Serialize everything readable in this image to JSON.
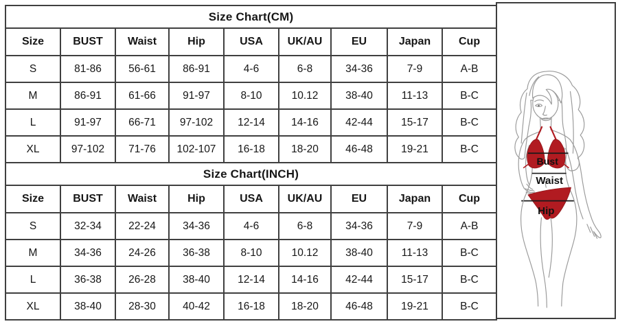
{
  "tables": [
    {
      "title": "Size Chart(CM)",
      "headers": [
        "Size",
        "BUST",
        "Waist",
        "Hip",
        "USA",
        "UK/AU",
        "EU",
        "Japan",
        "Cup"
      ],
      "rows": [
        [
          "S",
          "81-86",
          "56-61",
          "86-91",
          "4-6",
          "6-8",
          "34-36",
          "7-9",
          "A-B"
        ],
        [
          "M",
          "86-91",
          "61-66",
          "91-97",
          "8-10",
          "10.12",
          "38-40",
          "11-13",
          "B-C"
        ],
        [
          "L",
          "91-97",
          "66-71",
          "97-102",
          "12-14",
          "14-16",
          "42-44",
          "15-17",
          "B-C"
        ],
        [
          "XL",
          "97-102",
          "71-76",
          "102-107",
          "16-18",
          "18-20",
          "46-48",
          "19-21",
          "B-C"
        ]
      ]
    },
    {
      "title": "Size Chart(INCH)",
      "headers": [
        "Size",
        "BUST",
        "Waist",
        "Hip",
        "USA",
        "UK/AU",
        "EU",
        "Japan",
        "Cup"
      ],
      "rows": [
        [
          "S",
          "32-34",
          "22-24",
          "34-36",
          "4-6",
          "6-8",
          "34-36",
          "7-9",
          "A-B"
        ],
        [
          "M",
          "34-36",
          "24-26",
          "36-38",
          "8-10",
          "10.12",
          "38-40",
          "11-13",
          "B-C"
        ],
        [
          "L",
          "36-38",
          "26-28",
          "38-40",
          "12-14",
          "14-16",
          "42-44",
          "15-17",
          "B-C"
        ],
        [
          "XL",
          "38-40",
          "28-30",
          "40-42",
          "16-18",
          "18-20",
          "46-48",
          "19-21",
          "B-C"
        ]
      ]
    }
  ],
  "figure": {
    "labels": {
      "bust": "Bust",
      "waist": "Waist",
      "hip": "Hip"
    },
    "colors": {
      "bikini_red": "#b11b21",
      "outline_gray": "#9a9a9a",
      "measure_line": "#1a1a1a"
    }
  }
}
